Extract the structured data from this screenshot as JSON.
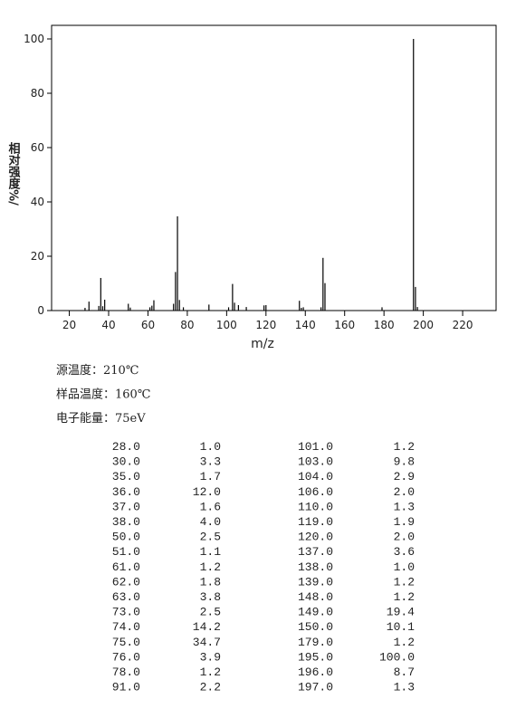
{
  "chart_data": {
    "type": "bar",
    "x_label": "m/z",
    "y_label": "相对强度%/",
    "x": [
      28,
      30,
      35,
      36,
      37,
      38,
      50,
      51,
      61,
      62,
      63,
      73,
      74,
      75,
      76,
      78,
      91,
      101,
      103,
      104,
      106,
      110,
      119,
      120,
      137,
      138,
      139,
      148,
      149,
      150,
      179,
      195,
      196,
      197
    ],
    "values": [
      1.0,
      3.3,
      1.7,
      12.0,
      1.6,
      4.0,
      2.5,
      1.1,
      1.2,
      1.8,
      3.8,
      2.5,
      14.2,
      34.7,
      3.9,
      1.2,
      2.2,
      1.2,
      9.8,
      2.9,
      2.0,
      1.3,
      1.9,
      2.0,
      3.6,
      1.0,
      1.2,
      1.2,
      19.4,
      10.1,
      1.2,
      100.0,
      8.7,
      1.3
    ],
    "x_labels": [
      "28.0",
      "30.0",
      "35.0",
      "36.0",
      "37.0",
      "38.0",
      "50.0",
      "51.0",
      "61.0",
      "62.0",
      "63.0",
      "73.0",
      "74.0",
      "75.0",
      "76.0",
      "78.0",
      "91.0",
      "101.0",
      "103.0",
      "104.0",
      "106.0",
      "110.0",
      "119.0",
      "120.0",
      "137.0",
      "138.0",
      "139.0",
      "148.0",
      "149.0",
      "150.0",
      "179.0",
      "195.0",
      "196.0",
      "197.0"
    ],
    "value_labels": [
      "1.0",
      "3.3",
      "1.7",
      "12.0",
      "1.6",
      "4.0",
      "2.5",
      "1.1",
      "1.2",
      "1.8",
      "3.8",
      "2.5",
      "14.2",
      "34.7",
      "3.9",
      "1.2",
      "2.2",
      "1.2",
      "9.8",
      "2.9",
      "2.0",
      "1.3",
      "1.9",
      "2.0",
      "3.6",
      "1.0",
      "1.2",
      "1.2",
      "19.4",
      "10.1",
      "1.2",
      "100.0",
      "8.7",
      "1.3"
    ],
    "color": "#000000",
    "xlim": [
      11,
      237
    ],
    "xticks": [
      20,
      40,
      60,
      80,
      100,
      120,
      140,
      160,
      180,
      200,
      220
    ],
    "ylim": [
      0,
      105
    ],
    "yticks": [
      0,
      20,
      40,
      60,
      80,
      100
    ]
  },
  "info": [
    "源温度：210℃",
    "样品温度：160℃",
    "电子能量：75eV"
  ]
}
